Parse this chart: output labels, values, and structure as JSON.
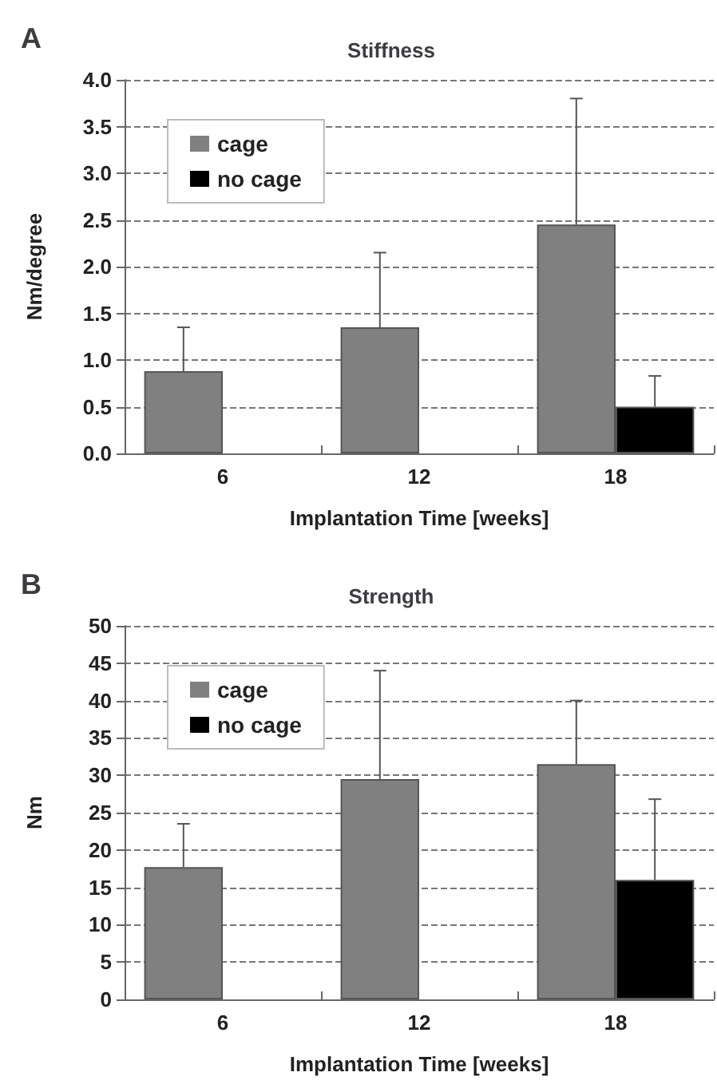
{
  "chart_data": [
    {
      "type": "bar",
      "title": "Stiffness",
      "annotations": [
        "A"
      ],
      "xlabel": "Implantation Time [weeks]",
      "ylabel": "Nm/degree",
      "categories": [
        "6",
        "12",
        "18"
      ],
      "series": [
        {
          "name": "cage",
          "color": "#808080",
          "values": [
            0.88,
            1.35,
            2.45
          ],
          "errors": [
            [
              0.88,
              1.35
            ],
            [
              1.35,
              2.15
            ],
            [
              2.45,
              3.8
            ]
          ]
        },
        {
          "name": "no cage",
          "color": "#000000",
          "values": [
            null,
            null,
            0.5
          ],
          "errors": [
            null,
            null,
            [
              0.5,
              0.83
            ]
          ]
        }
      ],
      "ylim": [
        0,
        4
      ],
      "yticks": [
        {
          "value": 0,
          "label": "0.0"
        },
        {
          "value": 0.5,
          "label": "0.5"
        },
        {
          "value": 1,
          "label": "1.0"
        },
        {
          "value": 1.5,
          "label": "1.5"
        },
        {
          "value": 2,
          "label": "2.0"
        },
        {
          "value": 2.5,
          "label": "2.5"
        },
        {
          "value": 3,
          "label": "3.0"
        },
        {
          "value": 3.5,
          "label": "3.5"
        },
        {
          "value": 4,
          "label": "4.0"
        }
      ],
      "grid": "y",
      "legend": "top left"
    },
    {
      "type": "bar",
      "title": "Strength",
      "annotations": [
        "B"
      ],
      "xlabel": "Implantation Time [weeks]",
      "ylabel": "Nm",
      "categories": [
        "6",
        "12",
        "18"
      ],
      "series": [
        {
          "name": "cage",
          "color": "#808080",
          "values": [
            17.7,
            29.5,
            31.5
          ],
          "errors": [
            [
              17.7,
              23.5
            ],
            [
              29.5,
              44
            ],
            [
              31.5,
              40
            ]
          ]
        },
        {
          "name": "no cage",
          "color": "#000000",
          "values": [
            null,
            null,
            16
          ],
          "errors": [
            null,
            null,
            [
              16,
              26.8
            ]
          ]
        }
      ],
      "ylim": [
        0,
        50
      ],
      "yticks": [
        0,
        5,
        10,
        15,
        20,
        25,
        30,
        35,
        40,
        45,
        50
      ],
      "grid": "y",
      "legend": "top left"
    }
  ]
}
